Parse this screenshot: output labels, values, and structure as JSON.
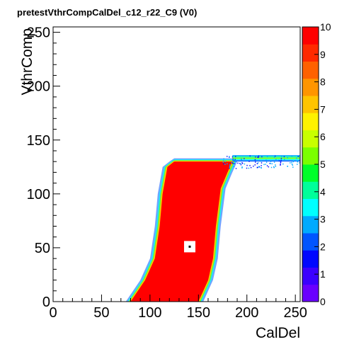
{
  "chart_data": {
    "type": "heatmap",
    "title": "pretestVthrCompCalDel_c12_r22_C9 (V0)",
    "xlabel": "CalDel",
    "ylabel": "VthrComp",
    "xlim": [
      0,
      255
    ],
    "ylim": [
      0,
      255
    ],
    "x_ticks": [
      "0",
      "50",
      "100",
      "150",
      "200",
      "250"
    ],
    "y_ticks": [
      "0",
      "50",
      "100",
      "150",
      "200",
      "250"
    ],
    "z_range": [
      0,
      10
    ],
    "colorbar_ticks": [
      "0",
      "1",
      "2",
      "3",
      "4",
      "5",
      "6",
      "7",
      "8",
      "9",
      "10"
    ],
    "saturated_value": 10,
    "saturated_region_boundary": {
      "left_edge": [
        [
          80,
          0
        ],
        [
          95,
          20
        ],
        [
          105,
          40
        ],
        [
          110,
          70
        ],
        [
          113,
          100
        ],
        [
          118,
          125
        ],
        [
          125,
          130
        ]
      ],
      "right_edge": [
        [
          185,
          130
        ],
        [
          180,
          120
        ],
        [
          173,
          105
        ],
        [
          168,
          70
        ],
        [
          165,
          40
        ],
        [
          160,
          20
        ],
        [
          150,
          0
        ]
      ]
    },
    "plateau": {
      "x_range": [
        185,
        255
      ],
      "y": [
        130,
        136
      ]
    },
    "empty_cell": {
      "x": 141,
      "y": 51
    }
  },
  "colors": {
    "palette": [
      "#6a00ff",
      "#3b00ff",
      "#0008ff",
      "#0055ff",
      "#00aaff",
      "#00ffff",
      "#00ff9a",
      "#00ff2a",
      "#7bff00",
      "#c8ff00",
      "#fff200",
      "#ffc400",
      "#ff9500",
      "#ff6100",
      "#ff2a00",
      "#ff0000"
    ],
    "fill": "#ff0000",
    "axis": "#000000"
  }
}
